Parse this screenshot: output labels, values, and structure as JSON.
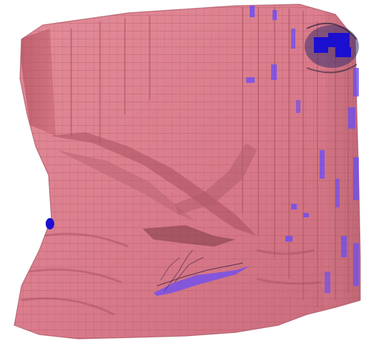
{
  "image": {
    "subject": "voxel-mesh-render",
    "background_color": "#ffffff",
    "surface_color": "#d97a8a",
    "surface_shadow_color": "#a9515f",
    "surface_highlight_color": "#e6939f",
    "accent_color": "#6f4ff0",
    "deep_accent_color": "#1b0fd0"
  }
}
